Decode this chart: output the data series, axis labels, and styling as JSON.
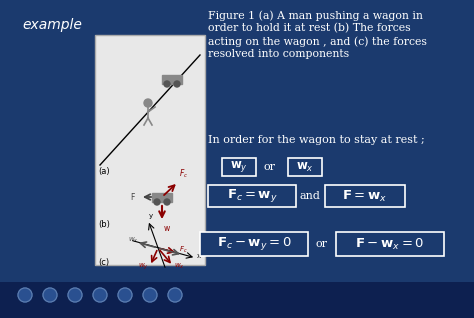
{
  "bg_color": "#1b3a6e",
  "title_text": "example",
  "title_color": "#ffffff",
  "title_fontsize": 10,
  "figure_caption_lines": [
    "Figure 1 (a) A man pushing a wagon in",
    "order to hold it at rest (b) The forces",
    "acting on the wagon , and (c) the forces",
    "resolved into components"
  ],
  "caption_color": "#ffffff",
  "caption_fontsize": 7.8,
  "intro_text": "In order for the wagon to stay at rest ;",
  "intro_color": "#ffffff",
  "intro_fontsize": 8.0,
  "box_bg": "#1b3a6e",
  "box_edge": "#ffffff",
  "text_color": "#ffffff",
  "diagram_bg": "#e8e8e8",
  "or_text": "or",
  "and_text": "and"
}
